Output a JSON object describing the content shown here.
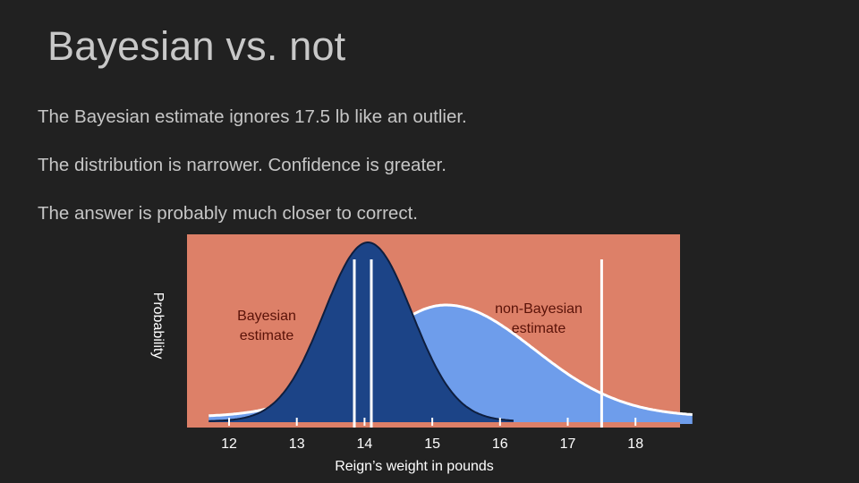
{
  "slide": {
    "title": "Bayesian vs. not",
    "bullets": [
      "The Bayesian estimate ignores 17.5 lb like an outlier.",
      "The distribution is narrower. Confidence is greater.",
      "The answer is probably much closer to correct."
    ]
  },
  "figure": {
    "background_color": "#dd8068",
    "y_axis_label": "Probability",
    "x_axis_label": "Reign’s weight in pounds",
    "x_ticks": [
      12,
      13,
      14,
      15,
      16,
      17,
      18
    ],
    "x_range": [
      11.35,
      18.65
    ],
    "bayesian": {
      "label_line1": "Bayesian",
      "label_line2": "estimate",
      "fill_color": "#1c4487",
      "mean": 14.05,
      "sd": 0.65,
      "range": [
        11.7,
        16.2
      ]
    },
    "non_bayesian": {
      "label_line1": "non-Bayesian",
      "label_line2": "estimate",
      "fill_color": "#6e9deb",
      "peak": 15.2,
      "sd_left": 1.15,
      "sd_right": 1.3,
      "range": [
        11.7,
        18.85
      ]
    },
    "marker_lines_lb": [
      13.85,
      14.1,
      17.5
    ]
  }
}
